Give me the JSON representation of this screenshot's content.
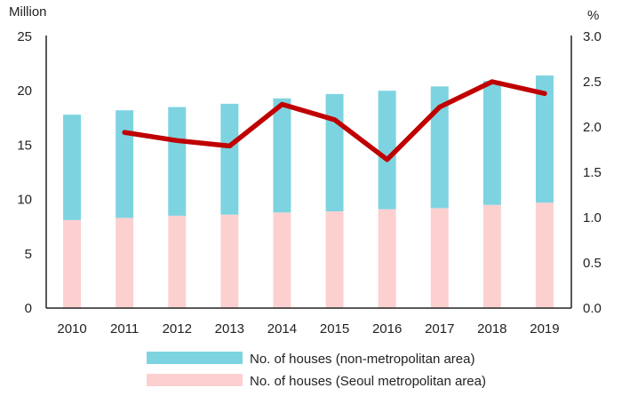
{
  "chart_data": {
    "type": "bar",
    "stacked": true,
    "categories": [
      "2010",
      "2011",
      "2012",
      "2013",
      "2014",
      "2015",
      "2016",
      "2017",
      "2018",
      "2019"
    ],
    "left_axis": {
      "label": "Million",
      "ylim": [
        0,
        25
      ],
      "ticks": [
        "0",
        "5",
        "10",
        "15",
        "20",
        "25"
      ]
    },
    "right_axis": {
      "label": "%",
      "ylim": [
        0,
        3.0
      ],
      "ticks": [
        "0.0",
        "0.5",
        "1.0",
        "1.5",
        "2.0",
        "2.5",
        "3.0"
      ]
    },
    "grid": false,
    "legend_placement": "bottom",
    "series": [
      {
        "name": "No. of houses (Seoul metropolitan area)",
        "type": "bar",
        "axis": "left",
        "color": "#fdd0d0",
        "values": [
          8.1,
          8.3,
          8.5,
          8.6,
          8.8,
          8.9,
          9.1,
          9.2,
          9.5,
          9.7
        ]
      },
      {
        "name": "No. of houses (non-metropolitan area)",
        "type": "bar",
        "axis": "left",
        "color": "#7dd4e0",
        "values": [
          9.7,
          9.9,
          10.0,
          10.2,
          10.5,
          10.8,
          10.9,
          11.2,
          11.4,
          11.7
        ]
      },
      {
        "type": "line",
        "axis": "right",
        "color": "#c00000",
        "values": [
          null,
          1.94,
          1.85,
          1.79,
          2.25,
          2.08,
          1.64,
          2.22,
          2.5,
          2.37
        ]
      }
    ]
  }
}
